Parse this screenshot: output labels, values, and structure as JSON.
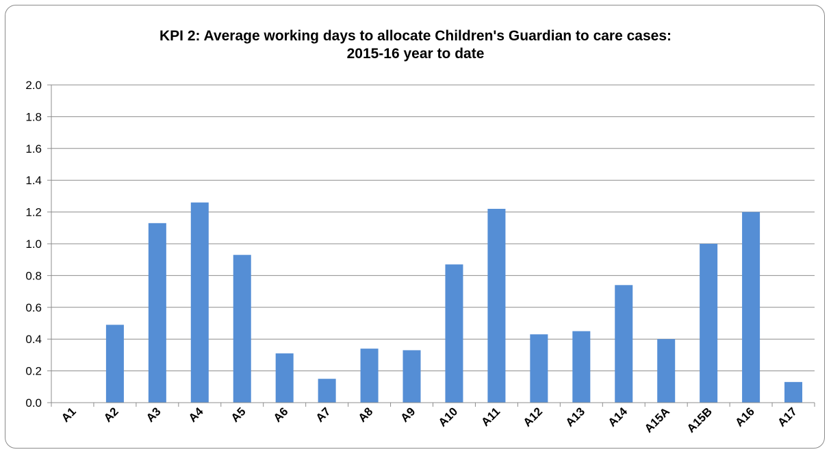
{
  "chart_data": {
    "type": "bar",
    "title": "KPI 2: Average working days to allocate Children's Guardian to care cases:",
    "subtitle": "2015-16 year to date",
    "xlabel": "",
    "ylabel": "",
    "categories": [
      "A1",
      "A2",
      "A3",
      "A4",
      "A5",
      "A6",
      "A7",
      "A8",
      "A9",
      "A10",
      "A11",
      "A12",
      "A13",
      "A14",
      "A15A",
      "A15B",
      "A16",
      "A17"
    ],
    "values": [
      0,
      0.49,
      1.13,
      1.26,
      0.93,
      0.31,
      0.15,
      0.34,
      0.33,
      0.87,
      1.22,
      0.43,
      0.45,
      0.74,
      0.4,
      1.0,
      1.2,
      0.13
    ],
    "ylim": [
      0,
      2.0
    ],
    "yticks": [
      "0.0",
      "0.2",
      "0.4",
      "0.6",
      "0.8",
      "1.0",
      "1.2",
      "1.4",
      "1.6",
      "1.8",
      "2.0"
    ],
    "grid": true,
    "legend": "none",
    "bar_color": "#558ed5",
    "grid_color": "#8c8c8c"
  }
}
